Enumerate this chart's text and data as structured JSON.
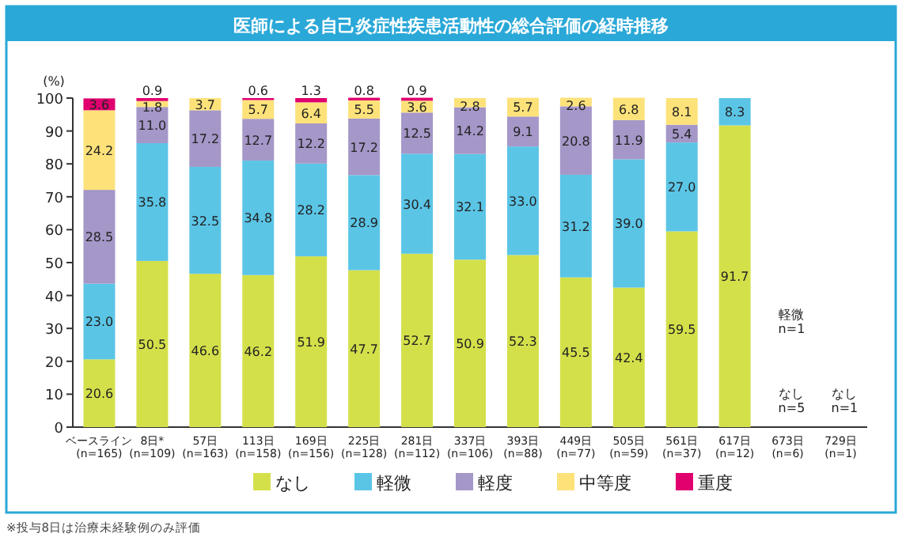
{
  "chart_data": {
    "type": "bar",
    "stacked": true,
    "title": "医師による自己炎症性疾患活動性の総合評価の経時推移",
    "ylabel": "(%)",
    "categories": [
      "ベースライン\n(n=165)",
      "8日*\n(n=109)",
      "57日\n(n=163)",
      "113日\n(n=158)",
      "169日\n(n=156)",
      "225日\n(n=128)",
      "281日\n(n=112)",
      "337日\n(n=106)",
      "393日\n(n=88)",
      "449日\n(n=77)",
      "505日\n(n=59)",
      "561日\n(n=37)",
      "617日\n(n=12)",
      "673日\n(n=6)",
      "729日\n(n=1)"
    ],
    "series": [
      {
        "name": "なし",
        "color": "#d4e04a",
        "values": [
          20.6,
          50.5,
          46.6,
          46.2,
          51.9,
          47.7,
          52.7,
          50.9,
          52.3,
          45.5,
          42.4,
          59.5,
          91.7,
          null,
          null
        ],
        "value_labels": [
          "20.6",
          "50.5",
          "46.6",
          "46.2",
          "51.9",
          "47.7",
          "52.7",
          "50.9",
          "52.3",
          "45.5",
          "42.4",
          "59.5",
          "91.7",
          null,
          null
        ]
      },
      {
        "name": "軽微",
        "color": "#5bc5e6",
        "values": [
          23.0,
          35.8,
          32.5,
          34.8,
          28.2,
          28.9,
          30.4,
          32.1,
          33.0,
          31.2,
          39.0,
          27.0,
          8.3,
          null,
          null
        ],
        "value_labels": [
          "23.0",
          "35.8",
          "32.5",
          "34.8",
          "28.2",
          "28.9",
          "30.4",
          "32.1",
          "33.0",
          "31.2",
          "39.0",
          "27.0",
          "8.3",
          null,
          null
        ]
      },
      {
        "name": "軽度",
        "color": "#a597c8",
        "values": [
          28.5,
          11.0,
          17.2,
          12.7,
          12.2,
          17.2,
          12.5,
          14.2,
          9.1,
          20.8,
          11.9,
          5.4,
          null,
          null,
          null
        ],
        "value_labels": [
          "28.5",
          "11.0",
          "17.2",
          "12.7",
          "12.2",
          "17.2",
          "12.5",
          "14.2",
          "9.1",
          "20.8",
          "11.9",
          "5.4",
          null,
          null,
          null
        ]
      },
      {
        "name": "中等度",
        "color": "#fde27a",
        "values": [
          24.2,
          1.8,
          3.7,
          5.7,
          6.4,
          5.5,
          3.6,
          2.8,
          5.7,
          2.6,
          6.8,
          8.1,
          null,
          null,
          null
        ],
        "value_labels": [
          "24.2",
          "1.8",
          "3.7",
          "5.7",
          "6.4",
          "5.5",
          "3.6",
          "2.8",
          "5.7",
          "2.6",
          "6.8",
          "8.1",
          null,
          null,
          null
        ]
      },
      {
        "name": "重度",
        "color": "#e0006e",
        "values": [
          3.6,
          0.9,
          null,
          0.6,
          1.3,
          0.8,
          0.9,
          null,
          null,
          null,
          null,
          null,
          null,
          null,
          null
        ],
        "value_labels": [
          "3.6",
          "0.9",
          null,
          "0.6",
          "1.3",
          "0.8",
          "0.9",
          null,
          null,
          null,
          null,
          null,
          null,
          null,
          null
        ]
      }
    ],
    "ylim": [
      0,
      100
    ],
    "yticks": [
      0,
      10,
      20,
      30,
      40,
      50,
      60,
      70,
      80,
      90,
      100
    ],
    "legend": "bottom",
    "grid": false,
    "annotations": [
      "軽微\nn=1",
      "なし\nn=5",
      "なし\nn=1",
      "※投与8日は治療未経験例のみ評価"
    ]
  }
}
